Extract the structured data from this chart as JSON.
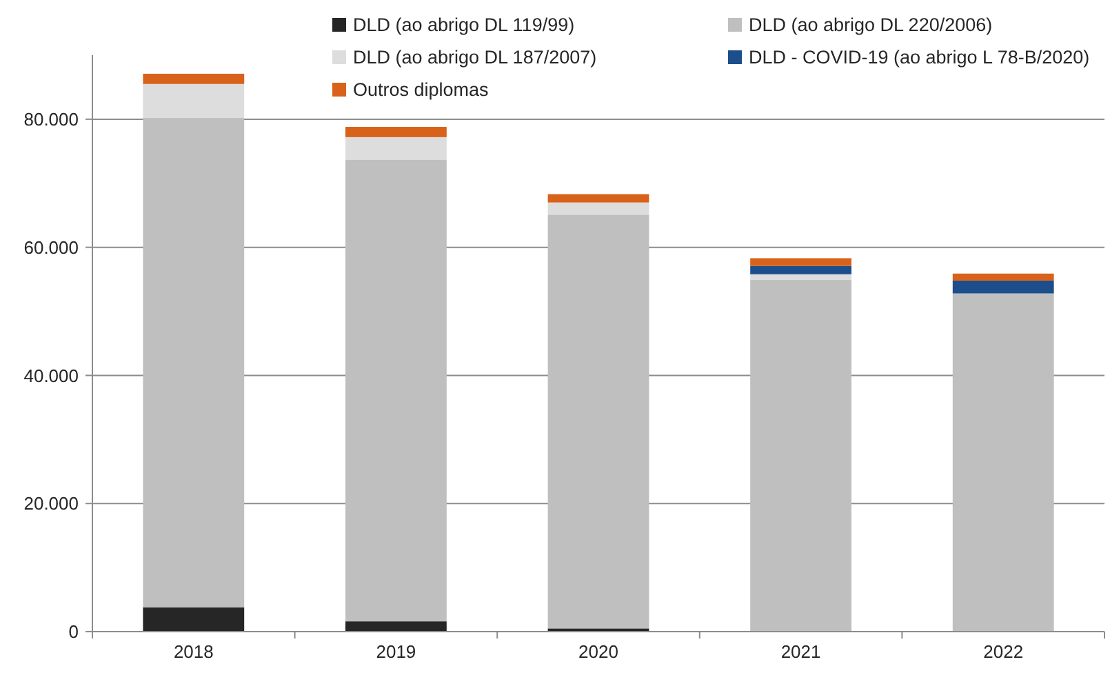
{
  "chart_data": {
    "type": "bar",
    "stacked": true,
    "categories": [
      "2018",
      "2019",
      "2020",
      "2021",
      "2022"
    ],
    "series": [
      {
        "name": "DLD (ao abrigo DL 119/99)",
        "color": "#262626",
        "values": [
          3800,
          1600,
          500,
          0,
          0
        ]
      },
      {
        "name": "DLD (ao abrigo DL 220/2006)",
        "color": "#bfbfbf",
        "values": [
          76400,
          72100,
          64600,
          54900,
          52800
        ]
      },
      {
        "name": "DLD (ao abrigo DL 187/2007)",
        "color": "#dddddd",
        "values": [
          5300,
          3500,
          1900,
          900,
          0
        ]
      },
      {
        "name": "DLD - COVID-19 (ao abrigo L 78-B/2020)",
        "color": "#1c4e8c",
        "values": [
          0,
          0,
          0,
          1300,
          2000
        ]
      },
      {
        "name": "Outros diplomas",
        "color": "#d9621a",
        "values": [
          1600,
          1600,
          1300,
          1200,
          1100
        ]
      }
    ],
    "ylim": [
      0,
      90000
    ],
    "yticks": [
      0,
      {
        "value": 20000,
        "label": "20.000"
      },
      {
        "value": 40000,
        "label": "40.000"
      },
      {
        "value": 60000,
        "label": "60.000"
      },
      {
        "value": 80000,
        "label": "80.000"
      }
    ],
    "grid": "y",
    "legend": "top right"
  }
}
